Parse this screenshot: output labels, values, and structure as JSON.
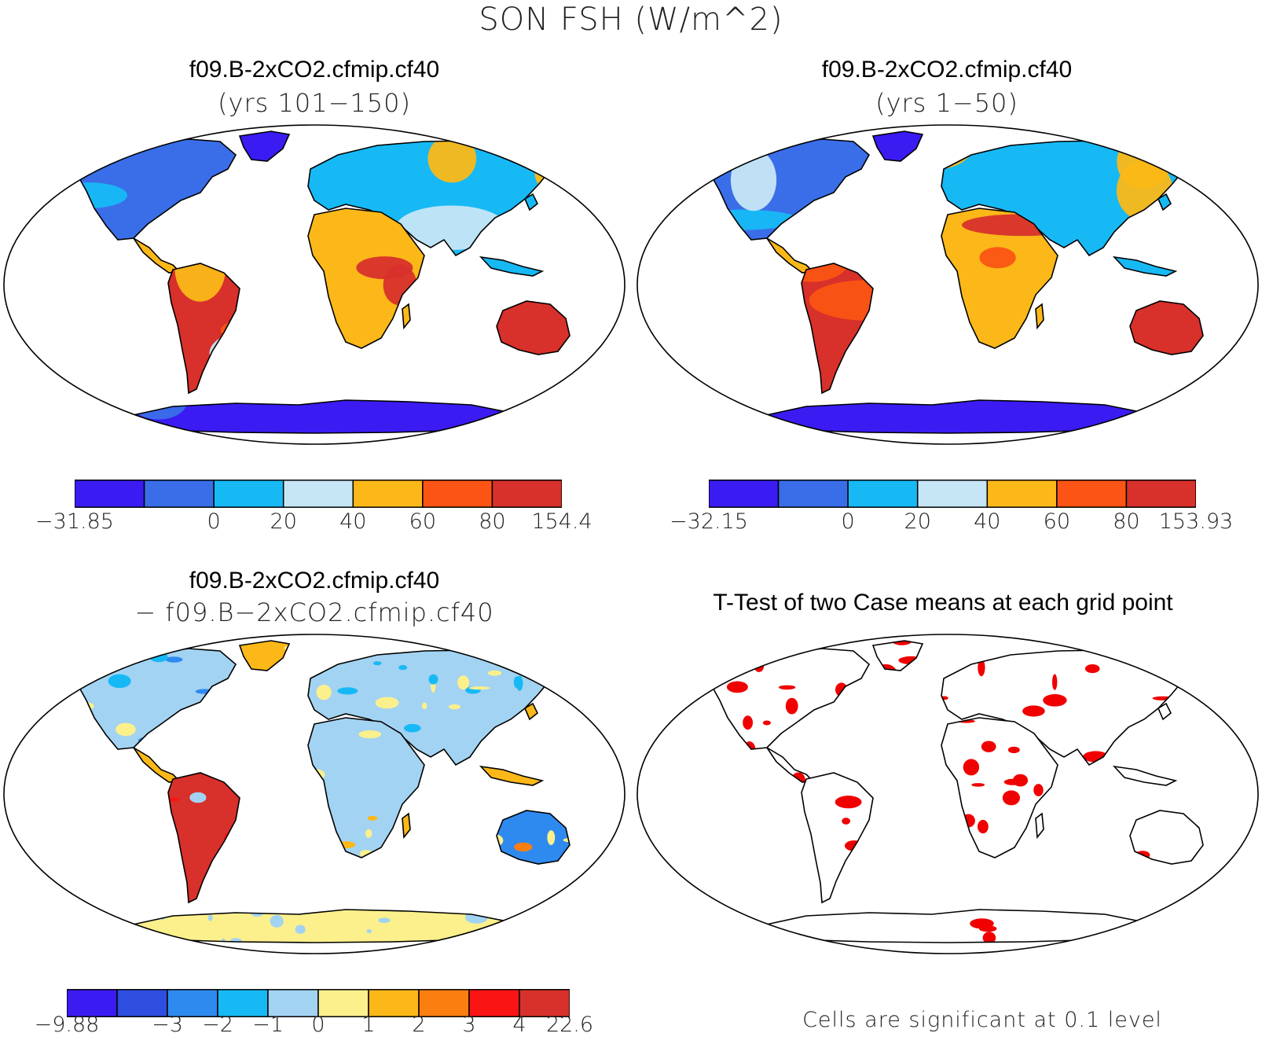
{
  "main_title": "SON FSH (W/m^2)",
  "panels": {
    "top_left": {
      "title": "f09.B-2xCO2.cfmip.cf40",
      "subtitle": "(yrs 101−150)"
    },
    "top_right": {
      "title": "f09.B-2xCO2.cfmip.cf40",
      "subtitle": "(yrs 1−50)"
    },
    "bottom_left": {
      "title": "f09.B-2xCO2.cfmip.cf40",
      "subtitle": "− f09.B−2xCO2.cfmip.cf40"
    },
    "bottom_right": {
      "title": "T-Test of two Case means at each grid point",
      "footnote": "Cells are significant at 0.1 level"
    }
  },
  "colorbars": {
    "top_left": {
      "colors": [
        "#3a1cf2",
        "#3a6ee8",
        "#17b9f5",
        "#c6e6f5",
        "#fbb818",
        "#fb5414",
        "#d8302b"
      ],
      "labels": [
        "−31.85",
        "",
        "0",
        "20",
        "40",
        "60",
        "80",
        "154.4"
      ]
    },
    "top_right": {
      "colors": [
        "#3a1cf2",
        "#3a6ee8",
        "#17b9f5",
        "#c6e6f5",
        "#fbb818",
        "#fb5414",
        "#d8302b"
      ],
      "labels": [
        "−32.15",
        "",
        "0",
        "20",
        "40",
        "60",
        "80",
        "153.93"
      ]
    },
    "bottom_left": {
      "colors": [
        "#3a1cf2",
        "#2e4ee0",
        "#2f8af0",
        "#17b9f5",
        "#a3d3f2",
        "#fbf08c",
        "#fbb818",
        "#fb7e10",
        "#fb1414",
        "#d8302b"
      ],
      "labels": [
        "−9.88",
        "",
        "−3",
        "−2",
        "−1",
        "0",
        "1",
        "2",
        "3",
        "4",
        "22.6"
      ]
    }
  },
  "map_colors": {
    "ocean": "#ffffff",
    "coast": "#000000",
    "significance": "#f00000"
  }
}
